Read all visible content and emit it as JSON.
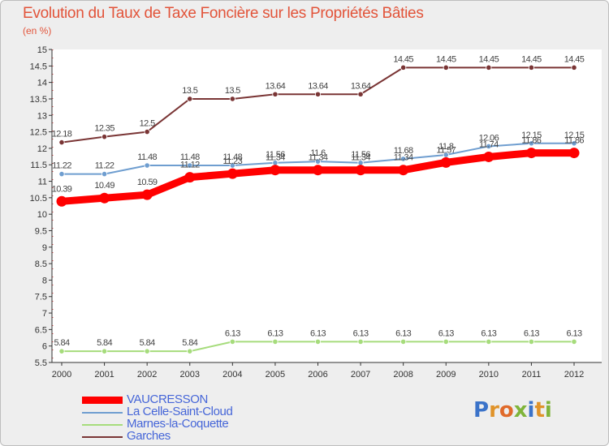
{
  "title": "Evolution du Taux de Taxe Foncière sur les Propriétés Bâties",
  "unit": "(en %)",
  "brand": {
    "letters": [
      "P",
      "r",
      "o",
      "x",
      "i",
      "t",
      "i"
    ],
    "colors": [
      "#3b73c9",
      "#e0932a",
      "#e06a2a",
      "#7fb43a",
      "#3b73c9",
      "#e0932a",
      "#7fb43a"
    ]
  },
  "chart_data": {
    "type": "line",
    "title": "Evolution du Taux de Taxe Foncière sur les Propriétés Bâties",
    "ylabel": "(en %)",
    "xlabel": "",
    "x": [
      "2000",
      "2001",
      "2002",
      "2003",
      "2004",
      "2005",
      "2006",
      "2007",
      "2008",
      "2009",
      "2010",
      "2011",
      "2012"
    ],
    "ylim": [
      5.5,
      15
    ],
    "yticks": [
      "5.5",
      "6",
      "6.5",
      "7",
      "7.5",
      "8",
      "8.5",
      "9",
      "9.5",
      "10",
      "10.5",
      "11",
      "11.5",
      "12",
      "12.5",
      "13",
      "13.5",
      "14",
      "14.5",
      "15"
    ],
    "grid": false,
    "legend_position": "bottom-left",
    "series": [
      {
        "name": "VAUCRESSON",
        "color": "#ff0000",
        "values": [
          10.39,
          10.49,
          10.59,
          11.12,
          11.23,
          11.34,
          11.34,
          11.34,
          11.34,
          11.57,
          11.74,
          11.86,
          11.86
        ],
        "labels": [
          "10.39",
          "10.49",
          "10.59",
          "11.12",
          "11.23",
          "11.34",
          "11.34",
          "11.34",
          "11.34",
          "11.57",
          "11.74",
          "11.86",
          "11.86"
        ],
        "bold": true
      },
      {
        "name": "La Celle-Saint-Cloud",
        "color": "#6f9ed0",
        "values": [
          11.22,
          11.22,
          11.48,
          11.48,
          11.48,
          11.56,
          11.6,
          11.56,
          11.68,
          11.8,
          12.06,
          12.15,
          12.15
        ],
        "labels": [
          "11.22",
          "11.22",
          "11.48",
          "11.48",
          "11.48",
          "11.56",
          "11.6",
          "11.56",
          "11.68",
          "11.8",
          "12.06",
          "12.15",
          "12.15"
        ]
      },
      {
        "name": "Marnes-la-Coquette",
        "color": "#a6dc7c",
        "values": [
          5.84,
          5.84,
          5.84,
          5.84,
          6.13,
          6.13,
          6.13,
          6.13,
          6.13,
          6.13,
          6.13,
          6.13,
          6.13
        ],
        "labels": [
          "5.84",
          "5.84",
          "5.84",
          "5.84",
          "6.13",
          "6.13",
          "6.13",
          "6.13",
          "6.13",
          "6.13",
          "6.13",
          "6.13",
          "6.13"
        ]
      },
      {
        "name": "Garches",
        "color": "#7a3535",
        "values": [
          12.18,
          12.35,
          12.5,
          13.5,
          13.5,
          13.64,
          13.64,
          13.64,
          14.45,
          14.45,
          14.45,
          14.45,
          14.45
        ],
        "labels": [
          "12.18",
          "12.35",
          "12.5",
          "13.5",
          "13.5",
          "13.64",
          "13.64",
          "13.64",
          "14.45",
          "14.45",
          "14.45",
          "14.45",
          "14.45"
        ]
      }
    ]
  }
}
